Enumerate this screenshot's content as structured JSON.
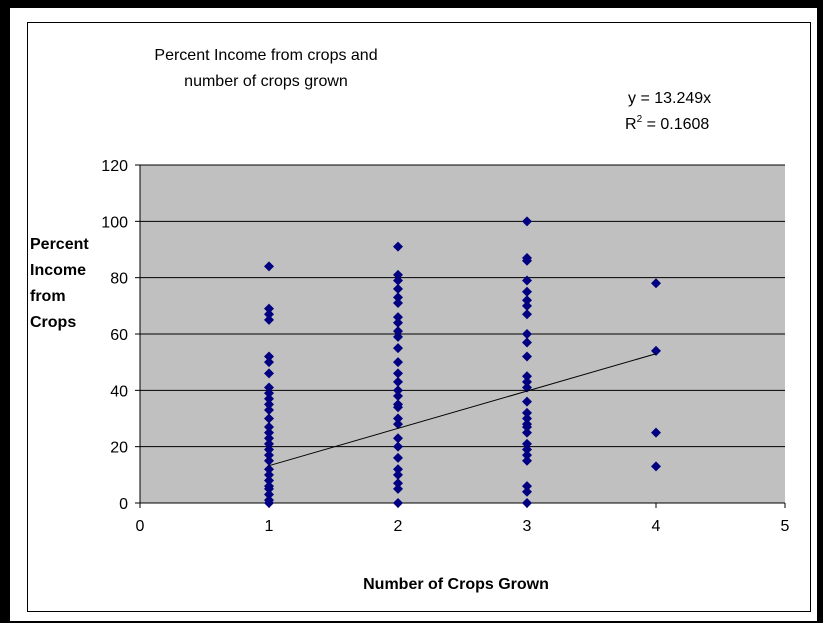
{
  "chart_data": {
    "type": "scatter",
    "title_line1": "Percent Income from crops and",
    "title_line2": "number of crops grown",
    "xlabel": "Number of Crops Grown",
    "ylabel_lines": [
      "Percent",
      "Income",
      "from",
      "Crops"
    ],
    "xlim": [
      0,
      5
    ],
    "ylim": [
      0,
      120
    ],
    "x_ticks": [
      "0",
      "1",
      "2",
      "3",
      "4",
      "5"
    ],
    "y_ticks": [
      "0",
      "20",
      "40",
      "60",
      "80",
      "100",
      "120"
    ],
    "grid": "horizontal",
    "trendline": {
      "equation": "y = 13.249x",
      "r2_prefix": "R",
      "r2_sup": "2",
      "r2_value": " = 0.1608",
      "slope": 13.249,
      "x_range": [
        1,
        4
      ]
    },
    "series": [
      {
        "marker": "diamond",
        "color": "#000080",
        "points": [
          [
            1,
            84
          ],
          [
            1,
            69
          ],
          [
            1,
            67
          ],
          [
            1,
            65
          ],
          [
            1,
            52
          ],
          [
            1,
            50
          ],
          [
            1,
            46
          ],
          [
            1,
            41
          ],
          [
            1,
            39
          ],
          [
            1,
            37
          ],
          [
            1,
            35
          ],
          [
            1,
            33
          ],
          [
            1,
            30
          ],
          [
            1,
            27
          ],
          [
            1,
            25
          ],
          [
            1,
            23
          ],
          [
            1,
            21
          ],
          [
            1,
            19
          ],
          [
            1,
            17
          ],
          [
            1,
            15
          ],
          [
            1,
            12
          ],
          [
            1,
            10
          ],
          [
            1,
            8
          ],
          [
            1,
            6
          ],
          [
            1,
            5
          ],
          [
            1,
            3
          ],
          [
            1,
            1
          ],
          [
            1,
            0
          ],
          [
            2,
            91
          ],
          [
            2,
            81
          ],
          [
            2,
            79
          ],
          [
            2,
            76
          ],
          [
            2,
            73
          ],
          [
            2,
            71
          ],
          [
            2,
            66
          ],
          [
            2,
            64
          ],
          [
            2,
            61
          ],
          [
            2,
            59
          ],
          [
            2,
            55
          ],
          [
            2,
            50
          ],
          [
            2,
            46
          ],
          [
            2,
            43
          ],
          [
            2,
            40
          ],
          [
            2,
            38
          ],
          [
            2,
            35
          ],
          [
            2,
            34
          ],
          [
            2,
            30
          ],
          [
            2,
            28
          ],
          [
            2,
            23
          ],
          [
            2,
            20
          ],
          [
            2,
            16
          ],
          [
            2,
            12
          ],
          [
            2,
            10
          ],
          [
            2,
            7
          ],
          [
            2,
            5
          ],
          [
            2,
            0
          ],
          [
            3,
            100
          ],
          [
            3,
            87
          ],
          [
            3,
            86
          ],
          [
            3,
            79
          ],
          [
            3,
            75
          ],
          [
            3,
            72
          ],
          [
            3,
            70
          ],
          [
            3,
            67
          ],
          [
            3,
            60
          ],
          [
            3,
            57
          ],
          [
            3,
            52
          ],
          [
            3,
            45
          ],
          [
            3,
            43
          ],
          [
            3,
            41
          ],
          [
            3,
            36
          ],
          [
            3,
            32
          ],
          [
            3,
            30
          ],
          [
            3,
            28
          ],
          [
            3,
            27
          ],
          [
            3,
            25
          ],
          [
            3,
            21
          ],
          [
            3,
            19
          ],
          [
            3,
            17
          ],
          [
            3,
            15
          ],
          [
            3,
            6
          ],
          [
            3,
            4
          ],
          [
            3,
            0
          ],
          [
            4,
            78
          ],
          [
            4,
            54
          ],
          [
            4,
            25
          ],
          [
            4,
            13
          ]
        ]
      }
    ],
    "colors": {
      "plot_background": "#c0c0c0",
      "marker": "#000080",
      "gridline": "#000000",
      "trendline": "#000000"
    }
  }
}
